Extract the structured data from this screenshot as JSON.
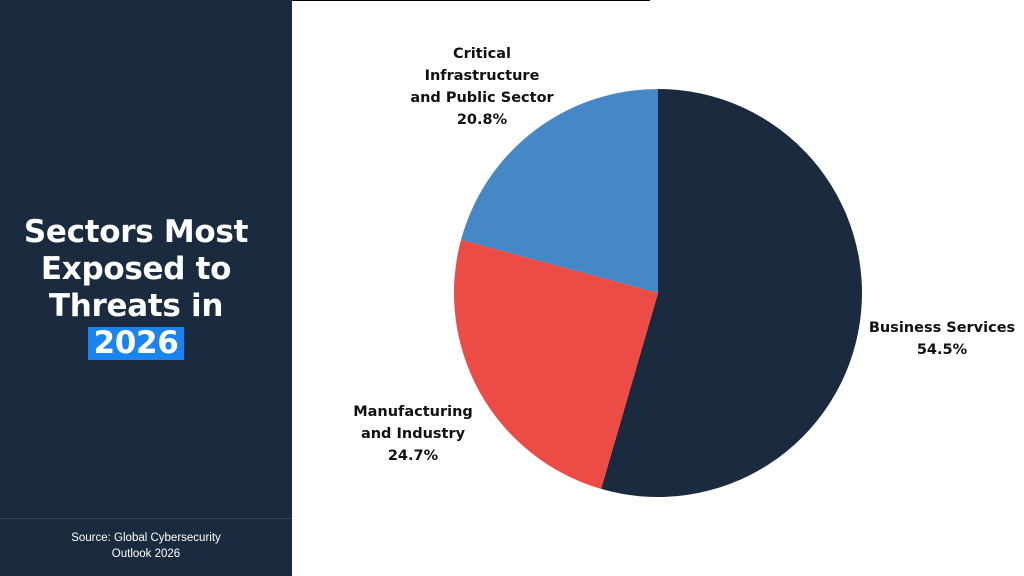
{
  "panel": {
    "title_lines": [
      "Sectors Most",
      "Exposed to",
      "Threats in"
    ],
    "title_highlight": "2026",
    "source_lines": [
      "Source: Global Cybersecurity",
      "Outlook 2026"
    ]
  },
  "colors": {
    "panel_bg": "#1b2b3f",
    "highlight": "#1a85f0",
    "business": "#1b2b3f",
    "manufacturing": "#ec4c45",
    "critical": "#4687c6"
  },
  "chart_data": {
    "type": "pie",
    "title": "Sectors Most Exposed to Threats in 2026",
    "start_angle_deg": 0,
    "direction": "clockwise",
    "slices": [
      {
        "key": "business",
        "label_lines": [
          "Business Services"
        ],
        "value_label": "54.5%",
        "value": 54.5,
        "color": "#1b2b3f"
      },
      {
        "key": "manufacturing",
        "label_lines": [
          "Manufacturing",
          "and Industry"
        ],
        "value_label": "24.7%",
        "value": 24.7,
        "color": "#ec4c45"
      },
      {
        "key": "critical",
        "label_lines": [
          "Critical",
          "Infrastructure",
          "and Public Sector"
        ],
        "value_label": "20.8%",
        "value": 20.8,
        "color": "#4687c6"
      }
    ]
  }
}
